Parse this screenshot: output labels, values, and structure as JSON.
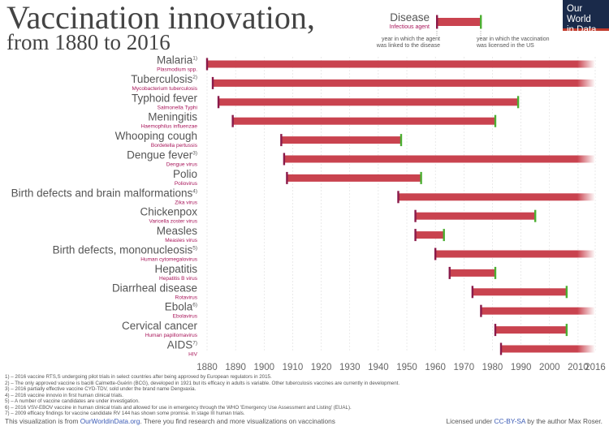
{
  "title_line1": "Vaccination innovation,",
  "title_line2": "from 1880 to 2016",
  "logo": {
    "line1": "Our World",
    "line2": "in Data"
  },
  "legend": {
    "disease_label": "Disease",
    "agent_label": "Infectious agent",
    "left_note_line1": "year in which the agent",
    "left_note_line2": "was linked to the disease",
    "right_note_line1": "year in which the vaccination",
    "right_note_line2": "was licensed in the US"
  },
  "colors": {
    "bar": "#c9434f",
    "start_tick": "#8a1a4a",
    "end_tick": "#4caf32",
    "agent_text": "#a8155a",
    "axis_text": "#666666",
    "label_text": "#555555",
    "grid": "#dddddd",
    "link": "#3b5bb5"
  },
  "chart_data": {
    "type": "range-bar",
    "title": "Vaccination innovation, from 1880 to 2016",
    "xlim": [
      1880,
      2016
    ],
    "x_ticks": [
      1880,
      1890,
      1900,
      1910,
      1920,
      1930,
      1940,
      1950,
      1960,
      1970,
      1980,
      1990,
      2000,
      2010,
      2016
    ],
    "grid": true,
    "rows": [
      {
        "disease": "Malaria",
        "note": "1)",
        "agent": "Plasmodium spp.",
        "start": 1880,
        "end": null
      },
      {
        "disease": "Tuberculosis",
        "note": "2)",
        "agent": "Mycobacterium tuberculosis",
        "start": 1882,
        "end": null
      },
      {
        "disease": "Typhoid fever",
        "note": "",
        "agent": "Salmonella Typhi",
        "start": 1884,
        "end": 1989
      },
      {
        "disease": "Meningitis",
        "note": "",
        "agent": "Haemophilus influenzae",
        "start": 1889,
        "end": 1981
      },
      {
        "disease": "Whooping cough",
        "note": "",
        "agent": "Bordetella pertussis",
        "start": 1906,
        "end": 1948
      },
      {
        "disease": "Dengue fever",
        "note": "3)",
        "agent": "Dengue virus",
        "start": 1907,
        "end": null
      },
      {
        "disease": "Polio",
        "note": "",
        "agent": "Poliovirus",
        "start": 1908,
        "end": 1955
      },
      {
        "disease": "Birth defects and brain malformations",
        "note": "4)",
        "agent": "Zika virus",
        "start": 1947,
        "end": null
      },
      {
        "disease": "Chickenpox",
        "note": "",
        "agent": "Varicella zoster virus",
        "start": 1953,
        "end": 1995
      },
      {
        "disease": "Measles",
        "note": "",
        "agent": "Measles virus",
        "start": 1953,
        "end": 1963
      },
      {
        "disease": "Birth defects, mononucleosis",
        "note": "5)",
        "agent": "Human cytomegalovirus",
        "start": 1960,
        "end": null
      },
      {
        "disease": "Hepatitis",
        "note": "",
        "agent": "Hepatitis B virus",
        "start": 1965,
        "end": 1981
      },
      {
        "disease": "Diarrheal disease",
        "note": "",
        "agent": "Rotavirus",
        "start": 1973,
        "end": 2006
      },
      {
        "disease": "Ebola",
        "note": "6)",
        "agent": "Ebolavirus",
        "start": 1976,
        "end": null
      },
      {
        "disease": "Cervical cancer",
        "note": "",
        "agent": "Human papillomavirus",
        "start": 1981,
        "end": 2006
      },
      {
        "disease": "AIDS",
        "note": "7)",
        "agent": "HIV",
        "start": 1983,
        "end": null
      }
    ]
  },
  "footnotes": [
    "1) – 2016 vaccine RTS,S undergoing pilot trials in select countries after being approved by European regulators in 2015.",
    "2) – The only approved vaccine is bacilli Calmette-Guérin (BCG), developed in 1921 but its efficacy in adults is variable. Other tuberculosis vaccines are currently in development.",
    "3) – 2016 partially effective vaccine CYD-TDV, sold under the brand name Dengvaxia.",
    "4) – 2016 vaccine innovio in first human clinical trials.",
    "5) – A number of vaccine candidates are under investigation.",
    "6) – 2016 VSV-EBOV vaccine in human clinical trials and allowed for use in emergency through the WHO 'Emergency Use Assessment and Listing' (EUAL).",
    "7) – 2009 efficacy findings for vaccine candidate RV 144 has shown some promise. In stage III human trials."
  ],
  "source": {
    "prefix": "This visualization is from ",
    "link": "OurWorldinData.org",
    "suffix": ". There you find research and more visualizations on vaccinations"
  },
  "license": {
    "prefix": "Licensed under ",
    "link": "CC-BY-SA",
    "suffix": " by the author Max Roser."
  }
}
